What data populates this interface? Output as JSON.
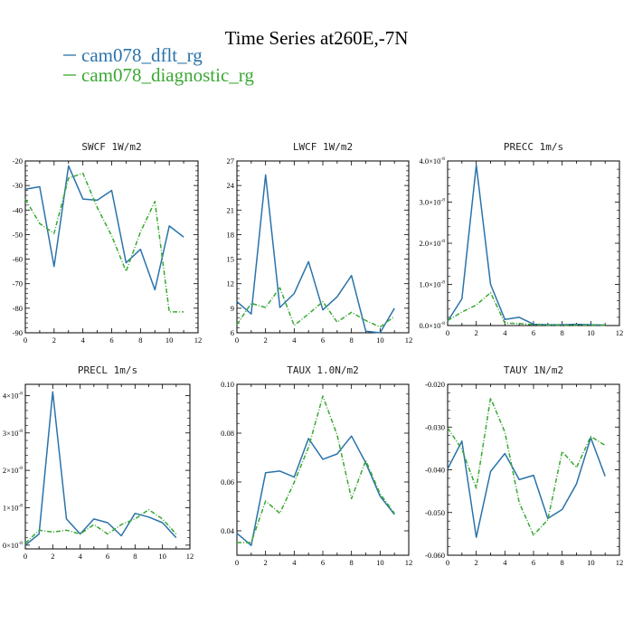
{
  "figure": {
    "title": "Time Series at260E,-7N",
    "legend": [
      {
        "label": "cam078_dflt_rg",
        "color": "#2a73aa"
      },
      {
        "label": "cam078_diagnostic_rg",
        "color": "#3aa832"
      }
    ]
  },
  "chart_data": [
    {
      "type": "line",
      "title": "SWCF   1W/m2",
      "xlim": [
        0,
        12
      ],
      "xticks": [
        0,
        2,
        4,
        6,
        8,
        10,
        12
      ],
      "ylim": [
        -90,
        -20
      ],
      "yticks": [
        -90,
        -80,
        -70,
        -60,
        -50,
        -40,
        -30,
        -20
      ],
      "yticklabels": [
        "-90",
        "-80",
        "-70",
        "-60",
        "-50",
        "-40",
        "-30",
        "-20"
      ],
      "series": [
        {
          "name": "cam078_dflt_rg",
          "x": [
            0,
            1,
            2,
            3,
            4,
            5,
            6,
            7,
            8,
            9,
            10,
            11
          ],
          "y": [
            -31.5,
            -30.5,
            -63,
            -22,
            -35.5,
            -36,
            -32,
            -61.5,
            -56,
            -72.5,
            -46.5,
            -51
          ]
        },
        {
          "name": "cam078_diagnostic_rg",
          "x": [
            0,
            1,
            2,
            3,
            4,
            5,
            6,
            7,
            8,
            9,
            10,
            11
          ],
          "y": [
            -35.5,
            -45.5,
            -49.5,
            -27,
            -25,
            -39,
            -50.5,
            -65,
            -49,
            -36.5,
            -81.5,
            -81.5
          ]
        }
      ]
    },
    {
      "type": "line",
      "title": "LWCF   1W/m2",
      "xlim": [
        0,
        12
      ],
      "xticks": [
        0,
        2,
        4,
        6,
        8,
        10,
        12
      ],
      "ylim": [
        6,
        27
      ],
      "yticks": [
        6,
        9,
        12,
        15,
        18,
        21,
        24,
        27
      ],
      "yticklabels": [
        "6",
        "9",
        "12",
        "15",
        "18",
        "21",
        "24",
        "27"
      ],
      "series": [
        {
          "name": "cam078_dflt_rg",
          "x": [
            0,
            1,
            2,
            3,
            4,
            5,
            6,
            7,
            8,
            9,
            10,
            11
          ],
          "y": [
            9.8,
            8.3,
            25.3,
            9.1,
            10.8,
            14.7,
            8.8,
            10.4,
            13.0,
            6.2,
            6.0,
            9.0
          ]
        },
        {
          "name": "cam078_diagnostic_rg",
          "x": [
            0,
            1,
            2,
            3,
            4,
            5,
            6,
            7,
            8,
            9,
            10,
            11
          ],
          "y": [
            7.0,
            9.6,
            9.1,
            11.5,
            6.9,
            8.3,
            9.8,
            7.3,
            8.5,
            7.5,
            6.7,
            8.0
          ]
        }
      ]
    },
    {
      "type": "line",
      "title": "PRECC   1m/s",
      "xlim": [
        0,
        12
      ],
      "xticks": [
        0,
        2,
        4,
        6,
        8,
        10,
        12
      ],
      "ylim": [
        0,
        4e-08
      ],
      "yticks": [
        0,
        1e-08,
        2e-08,
        3e-08,
        4e-08
      ],
      "yticklabels": [
        "0.0×10",
        "1.0×10",
        "2.0×10",
        "3.0×10",
        "4.0×10"
      ],
      "ytick_exponent": "-8",
      "series": [
        {
          "name": "cam078_dflt_rg",
          "x": [
            0,
            1,
            2,
            3,
            4,
            5,
            6,
            7,
            8,
            9,
            10,
            11
          ],
          "y": [
            1e-09,
            6.5e-09,
            3.9e-08,
            1e-08,
            1.5e-09,
            2e-09,
            3e-10,
            2e-10,
            2e-10,
            3e-10,
            2e-10,
            1e-10
          ]
        },
        {
          "name": "cam078_diagnostic_rg",
          "x": [
            0,
            1,
            2,
            3,
            4,
            5,
            6,
            7,
            8,
            9,
            10,
            11
          ],
          "y": [
            1.2e-09,
            3.3e-09,
            5e-09,
            8e-09,
            6e-10,
            5e-10,
            2e-10,
            1e-10,
            1e-10,
            1e-10,
            1e-10,
            1e-10
          ]
        }
      ]
    },
    {
      "type": "line",
      "title": "PRECL   1m/s",
      "xlim": [
        0,
        12
      ],
      "xticks": [
        0,
        2,
        4,
        6,
        8,
        10,
        12
      ],
      "ylim": [
        -0.1,
        4.3
      ],
      "yticks": [
        0,
        1,
        2,
        3,
        4
      ],
      "yticklabels": [
        "0×10",
        "1×10",
        "2×10",
        "3×10",
        "4×10"
      ],
      "ytick_exponent": "-8",
      "series": [
        {
          "name": "cam078_dflt_rg",
          "x": [
            0,
            1,
            2,
            3,
            4,
            5,
            6,
            7,
            8,
            9,
            10,
            11
          ],
          "y": [
            0.0,
            0.3,
            4.1,
            0.7,
            0.3,
            0.7,
            0.6,
            0.25,
            0.85,
            0.75,
            0.6,
            0.2
          ]
        },
        {
          "name": "cam078_diagnostic_rg",
          "x": [
            0,
            1,
            2,
            3,
            4,
            5,
            6,
            7,
            8,
            9,
            10,
            11
          ],
          "y": [
            0.05,
            0.4,
            0.35,
            0.4,
            0.3,
            0.55,
            0.3,
            0.55,
            0.7,
            0.95,
            0.7,
            0.3
          ]
        }
      ]
    },
    {
      "type": "line",
      "title": "TAUX   1.0N/m2",
      "xlim": [
        0,
        12
      ],
      "xticks": [
        0,
        2,
        4,
        6,
        8,
        10,
        12
      ],
      "ylim": [
        0.03,
        0.1
      ],
      "yticks": [
        0.04,
        0.06,
        0.08,
        0.1
      ],
      "yticklabels": [
        "0.04",
        "0.06",
        "0.08",
        "0.10"
      ],
      "series": [
        {
          "name": "cam078_dflt_rg",
          "x": [
            0,
            1,
            2,
            3,
            4,
            5,
            6,
            7,
            8,
            9,
            10,
            11
          ],
          "y": [
            0.039,
            0.034,
            0.0638,
            0.0645,
            0.062,
            0.0778,
            0.0693,
            0.0715,
            0.0788,
            0.0678,
            0.0542,
            0.0467
          ]
        },
        {
          "name": "cam078_diagnostic_rg",
          "x": [
            0,
            1,
            2,
            3,
            4,
            5,
            6,
            7,
            8,
            9,
            10,
            11
          ],
          "y": [
            0.0352,
            0.0352,
            0.0522,
            0.0472,
            0.0598,
            0.0742,
            0.0952,
            0.0793,
            0.0532,
            0.0688,
            0.0552,
            0.0472
          ]
        }
      ]
    },
    {
      "type": "line",
      "title": "TAUY   1N/m2",
      "xlim": [
        0,
        12
      ],
      "xticks": [
        0,
        2,
        4,
        6,
        8,
        10,
        12
      ],
      "ylim": [
        -0.06,
        -0.02
      ],
      "yticks": [
        -0.06,
        -0.05,
        -0.04,
        -0.03,
        -0.02
      ],
      "yticklabels": [
        "-0.060",
        "-0.050",
        "-0.040",
        "-0.030",
        "-0.020"
      ],
      "series": [
        {
          "name": "cam078_dflt_rg",
          "x": [
            0,
            1,
            2,
            3,
            4,
            5,
            6,
            7,
            8,
            9,
            10,
            11
          ],
          "y": [
            -0.0398,
            -0.0333,
            -0.0558,
            -0.0404,
            -0.0362,
            -0.0423,
            -0.0413,
            -0.0514,
            -0.0493,
            -0.0433,
            -0.0325,
            -0.0415
          ]
        },
        {
          "name": "cam078_diagnostic_rg",
          "x": [
            0,
            1,
            2,
            3,
            4,
            5,
            6,
            7,
            8,
            9,
            10,
            11
          ],
          "y": [
            -0.0302,
            -0.0352,
            -0.0443,
            -0.0232,
            -0.0312,
            -0.0477,
            -0.0553,
            -0.0517,
            -0.0357,
            -0.0395,
            -0.0322,
            -0.0343
          ]
        }
      ]
    }
  ]
}
